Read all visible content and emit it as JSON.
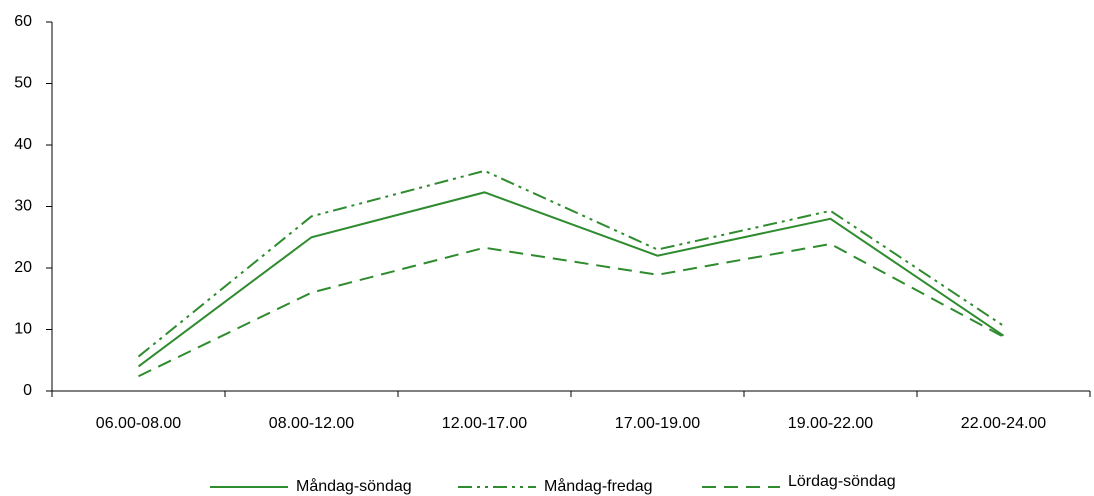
{
  "chart_data": {
    "type": "line",
    "categories": [
      "06.00-08.00",
      "08.00-12.00",
      "12.00-17.00",
      "17.00-19.00",
      "19.00-22.00",
      "22.00-24.00"
    ],
    "series": [
      {
        "name": "Måndag-söndag",
        "color": "#2e8b2e",
        "line_style": "solid",
        "values": [
          4,
          25,
          32.3,
          22,
          28,
          9
        ]
      },
      {
        "name": "Måndag-fredag",
        "color": "#2e8b2e",
        "line_style": "dash-dot-dot",
        "values": [
          5.6,
          28.4,
          35.8,
          23,
          29.3,
          10.6
        ]
      },
      {
        "name": "Lördag-söndag",
        "color": "#2e8b2e",
        "line_style": "dashed",
        "values": [
          2.4,
          16,
          23.3,
          18.9,
          23.9,
          8.8
        ]
      }
    ],
    "ylim": [
      0,
      60
    ],
    "yticks": [
      0,
      10,
      20,
      30,
      40,
      50,
      60
    ],
    "grid": false,
    "legend": "bottom"
  }
}
